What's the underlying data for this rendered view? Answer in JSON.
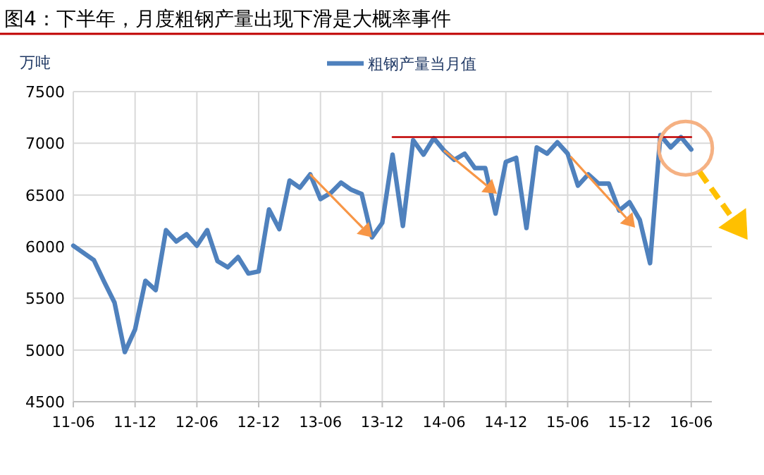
{
  "chart_data": {
    "type": "line",
    "title": "图4：下半年，月度粗钢产量出现下滑是大概率事件",
    "ylabel": "万吨",
    "x": [
      "2011-06",
      "2011-08",
      "2011-09",
      "2011-10",
      "2011-11",
      "2011-12",
      "2012-01",
      "2012-02",
      "2012-03",
      "2012-04",
      "2012-05",
      "2012-06",
      "2012-07",
      "2012-08",
      "2012-09",
      "2012-10",
      "2012-11",
      "2012-12",
      "2013-01",
      "2013-02",
      "2013-03",
      "2013-04",
      "2013-05",
      "2013-06",
      "2013-07",
      "2013-08",
      "2013-09",
      "2013-10",
      "2013-11",
      "2013-12",
      "2014-01",
      "2014-02",
      "2014-03",
      "2014-04",
      "2014-05",
      "2014-06",
      "2014-07",
      "2014-08",
      "2014-09",
      "2014-10",
      "2014-11",
      "2014-12",
      "2015-01",
      "2015-02",
      "2015-03",
      "2015-04",
      "2015-05",
      "2015-06",
      "2015-07",
      "2015-08",
      "2015-09",
      "2015-10",
      "2015-11",
      "2015-12",
      "2016-01",
      "2016-02",
      "2016-03",
      "2016-04",
      "2016-05",
      "2016-06"
    ],
    "series": [
      {
        "name": "粗钢产量当月值",
        "color": "#4f81bd",
        "values": [
          6010,
          5870,
          5660,
          5460,
          4980,
          5200,
          5670,
          5580,
          6160,
          6050,
          6120,
          6010,
          6160,
          5860,
          5800,
          5900,
          5740,
          5760,
          6360,
          6170,
          6640,
          6570,
          6700,
          6460,
          6520,
          6620,
          6550,
          6510,
          6090,
          6230,
          6890,
          6200,
          7030,
          6890,
          7050,
          6930,
          6840,
          6900,
          6760,
          6760,
          6320,
          6820,
          6860,
          6180,
          6960,
          6900,
          7010,
          6900,
          6590,
          6700,
          6610,
          6610,
          6350,
          6430,
          6260,
          5840,
          7080,
          6960,
          7060,
          6940
        ]
      },
      {
        "type": "line",
        "color": "#c00000",
        "x": [
          "2014-01",
          "2016-06"
        ],
        "values": [
          7060,
          7060
        ]
      }
    ],
    "xlim": [
      "2011-06",
      "2016-08"
    ],
    "xticks": [
      {
        "value": "2011-06",
        "label": "11-06"
      },
      {
        "value": "2011-12",
        "label": "11-12"
      },
      {
        "value": "2012-06",
        "label": "12-06"
      },
      {
        "value": "2012-12",
        "label": "12-12"
      },
      {
        "value": "2013-06",
        "label": "13-06"
      },
      {
        "value": "2013-12",
        "label": "13-12"
      },
      {
        "value": "2014-06",
        "label": "14-06"
      },
      {
        "value": "2014-12",
        "label": "14-12"
      },
      {
        "value": "2015-06",
        "label": "15-06"
      },
      {
        "value": "2015-12",
        "label": "15-12"
      },
      {
        "value": "2016-06",
        "label": "16-06"
      }
    ],
    "ylim": [
      4500,
      7500
    ],
    "yticks": [
      4500,
      5000,
      5500,
      6000,
      6500,
      7000,
      7500
    ],
    "grid": true,
    "legend": "top",
    "marker": "none",
    "line_style": "solid"
  }
}
